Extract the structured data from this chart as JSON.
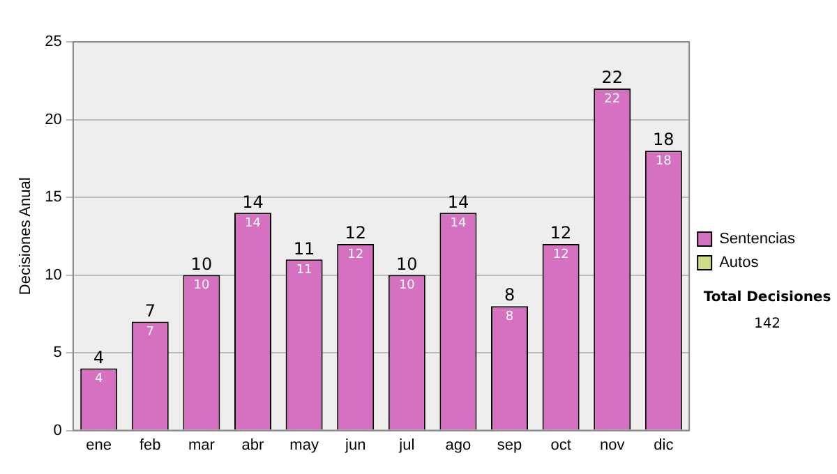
{
  "chart_data": {
    "type": "bar",
    "ylabel": "Decisiones Anual",
    "categories": [
      "ene",
      "feb",
      "mar",
      "abr",
      "may",
      "jun",
      "jul",
      "ago",
      "sep",
      "oct",
      "nov",
      "dic"
    ],
    "series": [
      {
        "name": "Sentencias",
        "color": "#d670c0",
        "values": [
          4,
          7,
          10,
          14,
          11,
          12,
          10,
          14,
          8,
          12,
          22,
          18
        ]
      },
      {
        "name": "Autos",
        "color": "#ccdd88",
        "values": [
          null,
          null,
          null,
          null,
          null,
          null,
          null,
          null,
          null,
          null,
          null,
          null
        ]
      }
    ],
    "stacked": true,
    "data_labels": true,
    "totals": [
      "4",
      "7",
      "10",
      "14",
      "11",
      "12",
      "10",
      "14",
      "8",
      "12",
      "22",
      "18"
    ],
    "ylim": [
      0,
      25
    ],
    "yticks": [
      0,
      5,
      10,
      15,
      20,
      25
    ],
    "grid": "y",
    "legend": "right",
    "annotations": [
      "Total Decisiones",
      "142"
    ]
  }
}
